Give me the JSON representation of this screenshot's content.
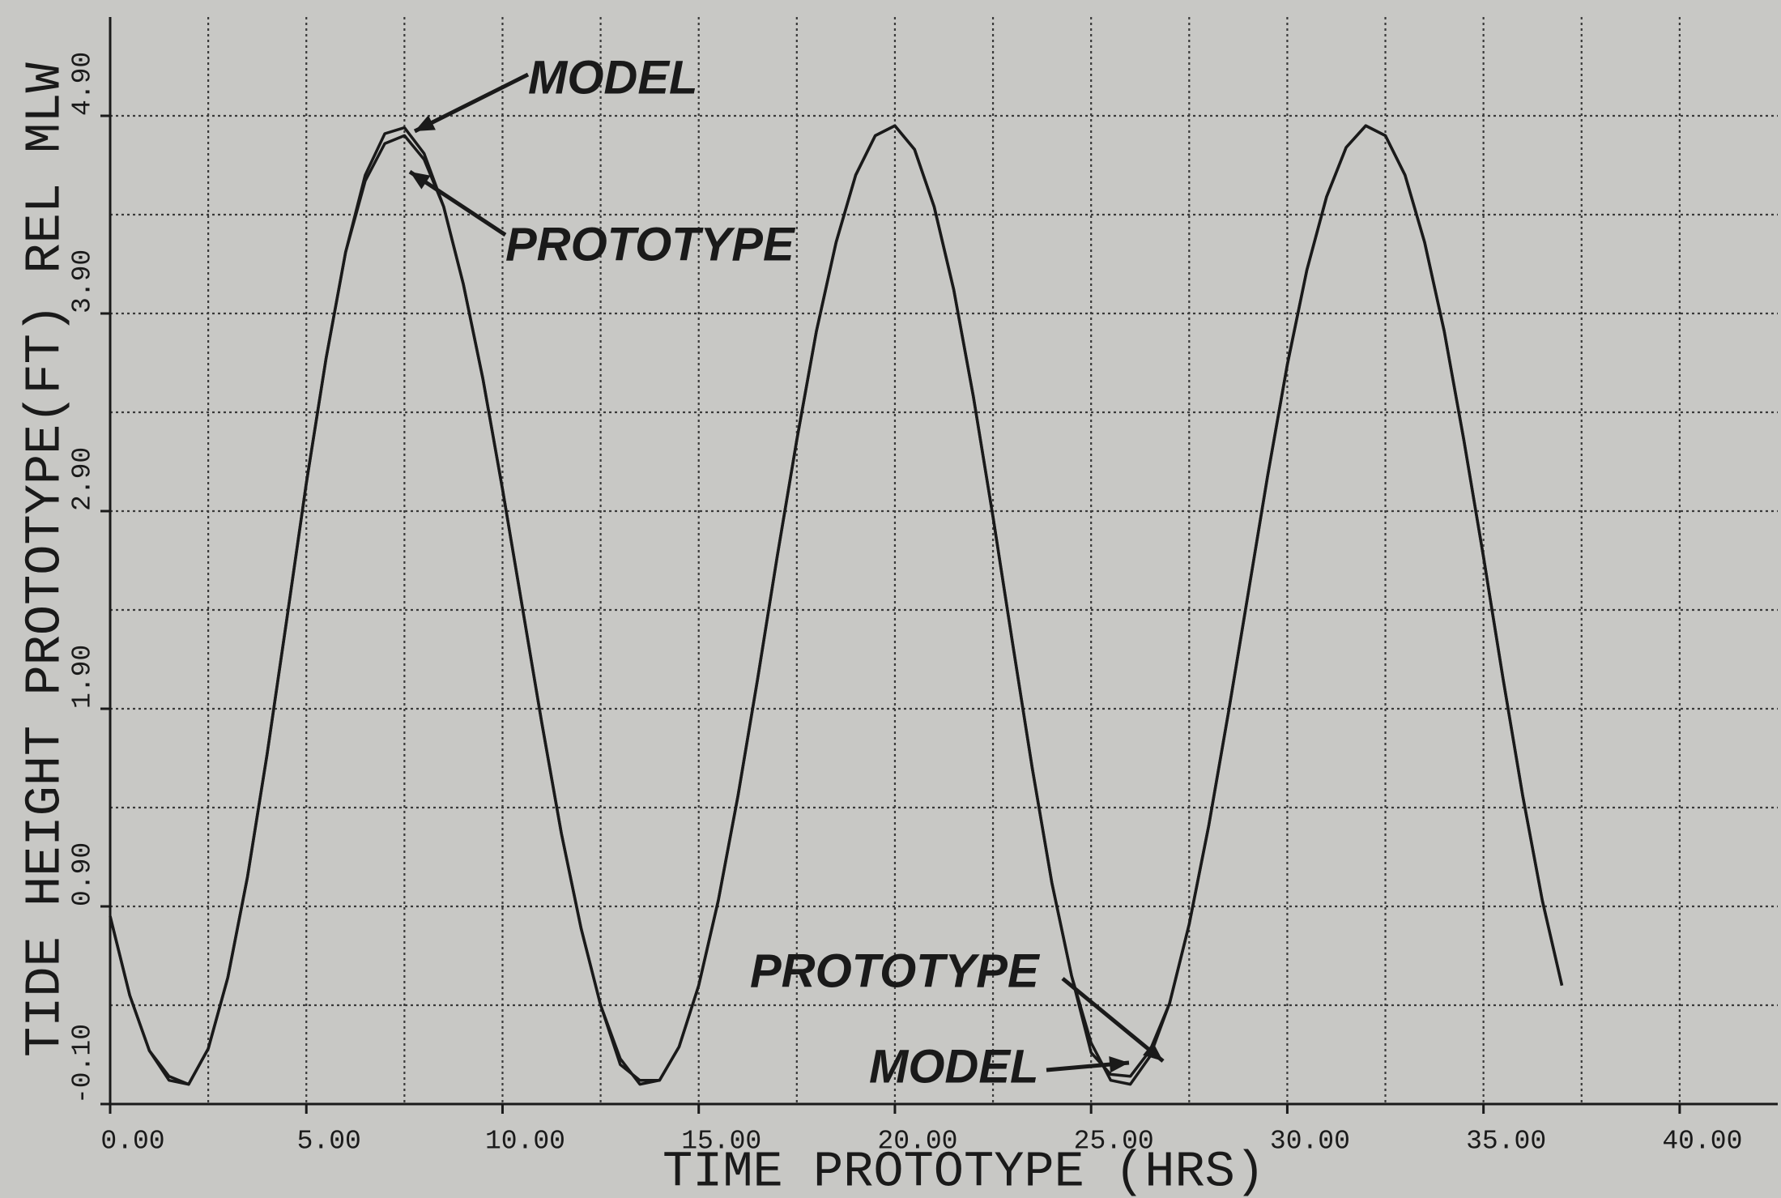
{
  "chart_data": {
    "type": "line",
    "xlabel": "TIME PROTOTYPE (HRS)",
    "ylabel": "TIDE HEIGHT PROTOTYPE(FT) REL MLW",
    "x": [
      0,
      0.5,
      1,
      1.5,
      2,
      2.5,
      3,
      3.5,
      4,
      4.5,
      5,
      5.5,
      6,
      6.5,
      7,
      7.5,
      8,
      8.5,
      9,
      9.5,
      10,
      10.5,
      11,
      11.5,
      12,
      12.5,
      13,
      13.5,
      14,
      14.5,
      15,
      15.5,
      16,
      16.5,
      17,
      17.5,
      18,
      18.5,
      19,
      19.5,
      20,
      20.5,
      21,
      21.5,
      22,
      22.5,
      23,
      23.5,
      24,
      24.5,
      25,
      25.5,
      26,
      26.5,
      27,
      27.5,
      28,
      28.5,
      29,
      29.5,
      30,
      30.5,
      31,
      31.5,
      32,
      32.5,
      33,
      33.5,
      34,
      34.5,
      35,
      35.5,
      36,
      36.5,
      37
    ],
    "series": [
      {
        "name": "MODEL",
        "color": "#1a1a1a",
        "values": [
          0.85,
          0.45,
          0.17,
          0.02,
          0.0,
          0.18,
          0.54,
          1.05,
          1.67,
          2.35,
          3.04,
          3.67,
          4.21,
          4.6,
          4.81,
          4.84,
          4.71,
          4.44,
          4.05,
          3.57,
          3.01,
          2.42,
          1.83,
          1.27,
          0.79,
          0.4,
          0.13,
          0.0,
          0.02,
          0.19,
          0.5,
          0.93,
          1.46,
          2.05,
          2.67,
          3.26,
          3.81,
          4.26,
          4.6,
          4.8,
          4.85,
          4.73,
          4.44,
          4.02,
          3.48,
          2.87,
          2.23,
          1.6,
          1.02,
          0.55,
          0.21,
          0.02,
          0.0,
          0.14,
          0.41,
          0.81,
          1.31,
          1.88,
          2.48,
          3.08,
          3.64,
          4.12,
          4.49,
          4.74,
          4.85,
          4.8,
          4.6,
          4.26,
          3.81,
          3.26,
          2.67,
          2.05,
          1.46,
          0.93,
          0.5
        ]
      },
      {
        "name": "PROTOTYPE",
        "color": "#1a1a1a",
        "values": [
          0.85,
          0.45,
          0.17,
          0.04,
          0.0,
          0.18,
          0.54,
          1.05,
          1.67,
          2.35,
          3.04,
          3.67,
          4.21,
          4.57,
          4.76,
          4.8,
          4.68,
          4.44,
          4.05,
          3.57,
          3.01,
          2.42,
          1.83,
          1.27,
          0.79,
          0.4,
          0.1,
          0.02,
          0.02,
          0.19,
          0.5,
          0.93,
          1.46,
          2.05,
          2.67,
          3.26,
          3.81,
          4.26,
          4.6,
          4.8,
          4.85,
          4.73,
          4.44,
          4.02,
          3.48,
          2.87,
          2.23,
          1.6,
          1.02,
          0.55,
          0.16,
          0.05,
          0.04,
          0.17,
          0.41,
          0.81,
          1.31,
          1.88,
          2.48,
          3.08,
          3.64,
          4.12,
          4.49,
          4.74,
          4.85,
          4.8,
          4.6,
          4.26,
          3.81,
          3.26,
          2.67,
          2.05,
          1.46,
          0.93,
          0.5
        ]
      }
    ],
    "xlim": [
      0,
      42.5
    ],
    "ylim": [
      -0.1,
      5.4
    ],
    "xticks": [
      {
        "value": 0,
        "label": "0.00"
      },
      {
        "value": 5,
        "label": "5.00"
      },
      {
        "value": 10,
        "label": "10.00"
      },
      {
        "value": 15,
        "label": "15.00"
      },
      {
        "value": 20,
        "label": "20.00"
      },
      {
        "value": 25,
        "label": "25.00"
      },
      {
        "value": 30,
        "label": "30.00"
      },
      {
        "value": 35,
        "label": "35.00"
      },
      {
        "value": 40,
        "label": "40.00"
      }
    ],
    "yticks": [
      {
        "value": -0.1,
        "label": "-0.10"
      },
      {
        "value": 0.9,
        "label": "0.90"
      },
      {
        "value": 1.9,
        "label": "1.90"
      },
      {
        "value": 2.9,
        "label": "2.90"
      },
      {
        "value": 3.9,
        "label": "3.90"
      },
      {
        "value": 4.9,
        "label": "4.90"
      }
    ],
    "grid": true
  }
}
